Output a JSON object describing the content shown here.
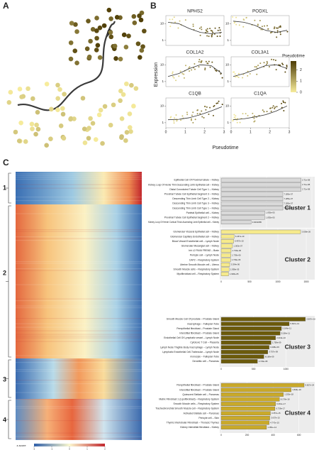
{
  "panels": {
    "a": "A",
    "b": "B",
    "c": "C"
  },
  "expression": {
    "type": "line",
    "xlabel": "Pseudotime",
    "ylabel": "Expression",
    "genes": [
      "NPHS2",
      "PODXL",
      "COL1A2",
      "COL3A1",
      "C1QB",
      "C1QA"
    ],
    "xlim": [
      0,
      3
    ],
    "xticks": [
      0,
      1,
      2,
      3
    ],
    "ylim": [
      0.5,
      30
    ],
    "yticks": [
      1,
      10
    ],
    "log": true,
    "legend": {
      "title": "Pseudotime",
      "range": [
        0,
        2.8
      ],
      "ticks": [
        0,
        1,
        2
      ]
    }
  },
  "heatmap": {
    "clusters": [
      "1",
      "2",
      "3",
      "4"
    ],
    "zscore_label": "z-score",
    "zscore_ticks": [
      -2,
      -1,
      0,
      1,
      2
    ]
  },
  "enrichment": [
    {
      "type": "bar",
      "name": "Cluster 1",
      "color": "#d9d9d9",
      "xlim": [
        0,
        1000
      ],
      "xticks": [
        0,
        500,
        1000
      ],
      "terms": [
        "Epithelial Cell Of Proximal tubule – Kidney",
        "Kidney Loop Of Henle Thin Descending Limb Epithelial cell – Kidney",
        "Distal Convoluted Tubule Cell Type 1 – Kidney",
        "Proximal Tubule Cell Epithelial Segment 3 – Kidney",
        "Descending Thin Limb Cell Type 2 – Kidney",
        "Descending Thin Limb Cell Type 3 – Kidney",
        "Descending Thin Limb Cell Type 1 – Kidney",
        "Parietal Epithelial cell – Kidney",
        "Proximal Tubule Cell Epithelial Segment 2 – Kidney",
        "Kidney Loop Of Henle Cortical Thick Ascending Limb Epithelial cell – Kidney"
      ],
      "values": [
        880,
        880,
        880,
        680,
        680,
        680,
        680,
        480,
        480,
        330
      ],
      "pvalue_labels": [
        "2.71e-08",
        "2.71e-08",
        "2.71e-08",
        "7.285e-07",
        "7.285e-07",
        "7.285e-07",
        "7.285e-07",
        "1.835e-05",
        "1.835e-05",
        "0.0002085"
      ]
    },
    {
      "type": "bar",
      "name": "Cluster 2",
      "color": "#f6ea8c",
      "xlim": [
        0,
        1600
      ],
      "xticks": [
        0,
        500,
        1000,
        1500
      ],
      "terms": [
        "Glomerular Visceral Epithelial cell – Kidney",
        "Glomerular Capillary Endothelial cell – Kidney",
        "Blood Vessel Endothelial cell – Lymph Node",
        "Glomerular Mesangial cell – Kidney",
        "Inh L2 PAX6 FREM2 – Brain",
        "Pericyte cell – Lymph Node",
        "CAP2 – Respiratory System",
        "Uterine Smooth Muscle cell – Uterus",
        "Smooth Muscle cells – Respiratory System",
        "Myofibroblast cell – Respiratory System"
      ],
      "values": [
        1400,
        230,
        220,
        200,
        175,
        170,
        165,
        150,
        140,
        130
      ],
      "pvalue_labels": [
        "3.638e-26",
        "6.467e-10",
        "6.467e-10",
        "1.003e-07",
        "1.739e-06",
        "1.739e-06",
        "1.739e-06",
        "3.034e-06",
        "1.938e-05",
        "1.938e-05"
      ]
    },
    {
      "type": "bar",
      "name": "Cluster 3",
      "color": "#6b5a0b",
      "xlim": [
        0,
        1400
      ],
      "xticks": [
        0,
        500,
        1000
      ],
      "terms": [
        "Smooth Muscle Cell Of prostate – Prostate Gland",
        "macrophage – Fallopian Tube",
        "Perepithelial fibroblast – Prostate Gland",
        "Interstitial fibroblast – Prostate Gland",
        "Endothelial Cell Of Lymphatic vessel – Lymph Node",
        "Cytotoxic T Cell – Placenta",
        "Lymph Node Tingible Body macrophage – Lymph Node",
        "Lymphatic Endothelial Cell-Trabecular – Lymph Node",
        "monocyte – Fallopian Tube",
        "Dendritic cell – Pancreas"
      ],
      "values": [
        1300,
        1050,
        930,
        910,
        840,
        770,
        740,
        720,
        660,
        560
      ],
      "pvalue_labels": [
        "2.667e-16",
        "5.667e-13",
        "5.186e-11",
        "5.186e-11",
        "2.219e-10",
        "1.758e-09",
        "3.298e-09",
        "3.757e-09",
        "8.168e-09",
        "3.749e-08"
      ]
    },
    {
      "type": "bar",
      "name": "Cluster 4",
      "color": "#c9a92a",
      "xlim": [
        0,
        700
      ],
      "xticks": [
        0,
        200,
        400,
        600
      ],
      "terms": [
        "Perepithelial fibroblast – Prostate Gland",
        "Interstitial fibroblast – Prostate Gland",
        "Quiescent Stellate cell – Pancreas",
        "Matrix Fibroblast 1 (Lipofibroblast) – Respiratory System",
        "Smooth Muscle cells – Respiratory System",
        "Tracheobronchial Smooth Muscle cell – Respiratory System",
        "Activated Stellate cell – Pancreas",
        "Pericyte cell – Skin",
        "Thymic Interlobular Fibroblast – Thoracic Thymus",
        "Kidney Interstitial fibroblast – Kidney"
      ],
      "values": [
        640,
        540,
        480,
        450,
        420,
        415,
        380,
        375,
        370,
        350
      ],
      "pvalue_labels": [
        "9.827e-24",
        "1.846e-20",
        "1.255e-18",
        "8.178e-18",
        "6.261e-17",
        "6.739e-17",
        "3.057e-15",
        "3.057e-15",
        "4.770e-15",
        "1.051e-14"
      ]
    }
  ]
}
